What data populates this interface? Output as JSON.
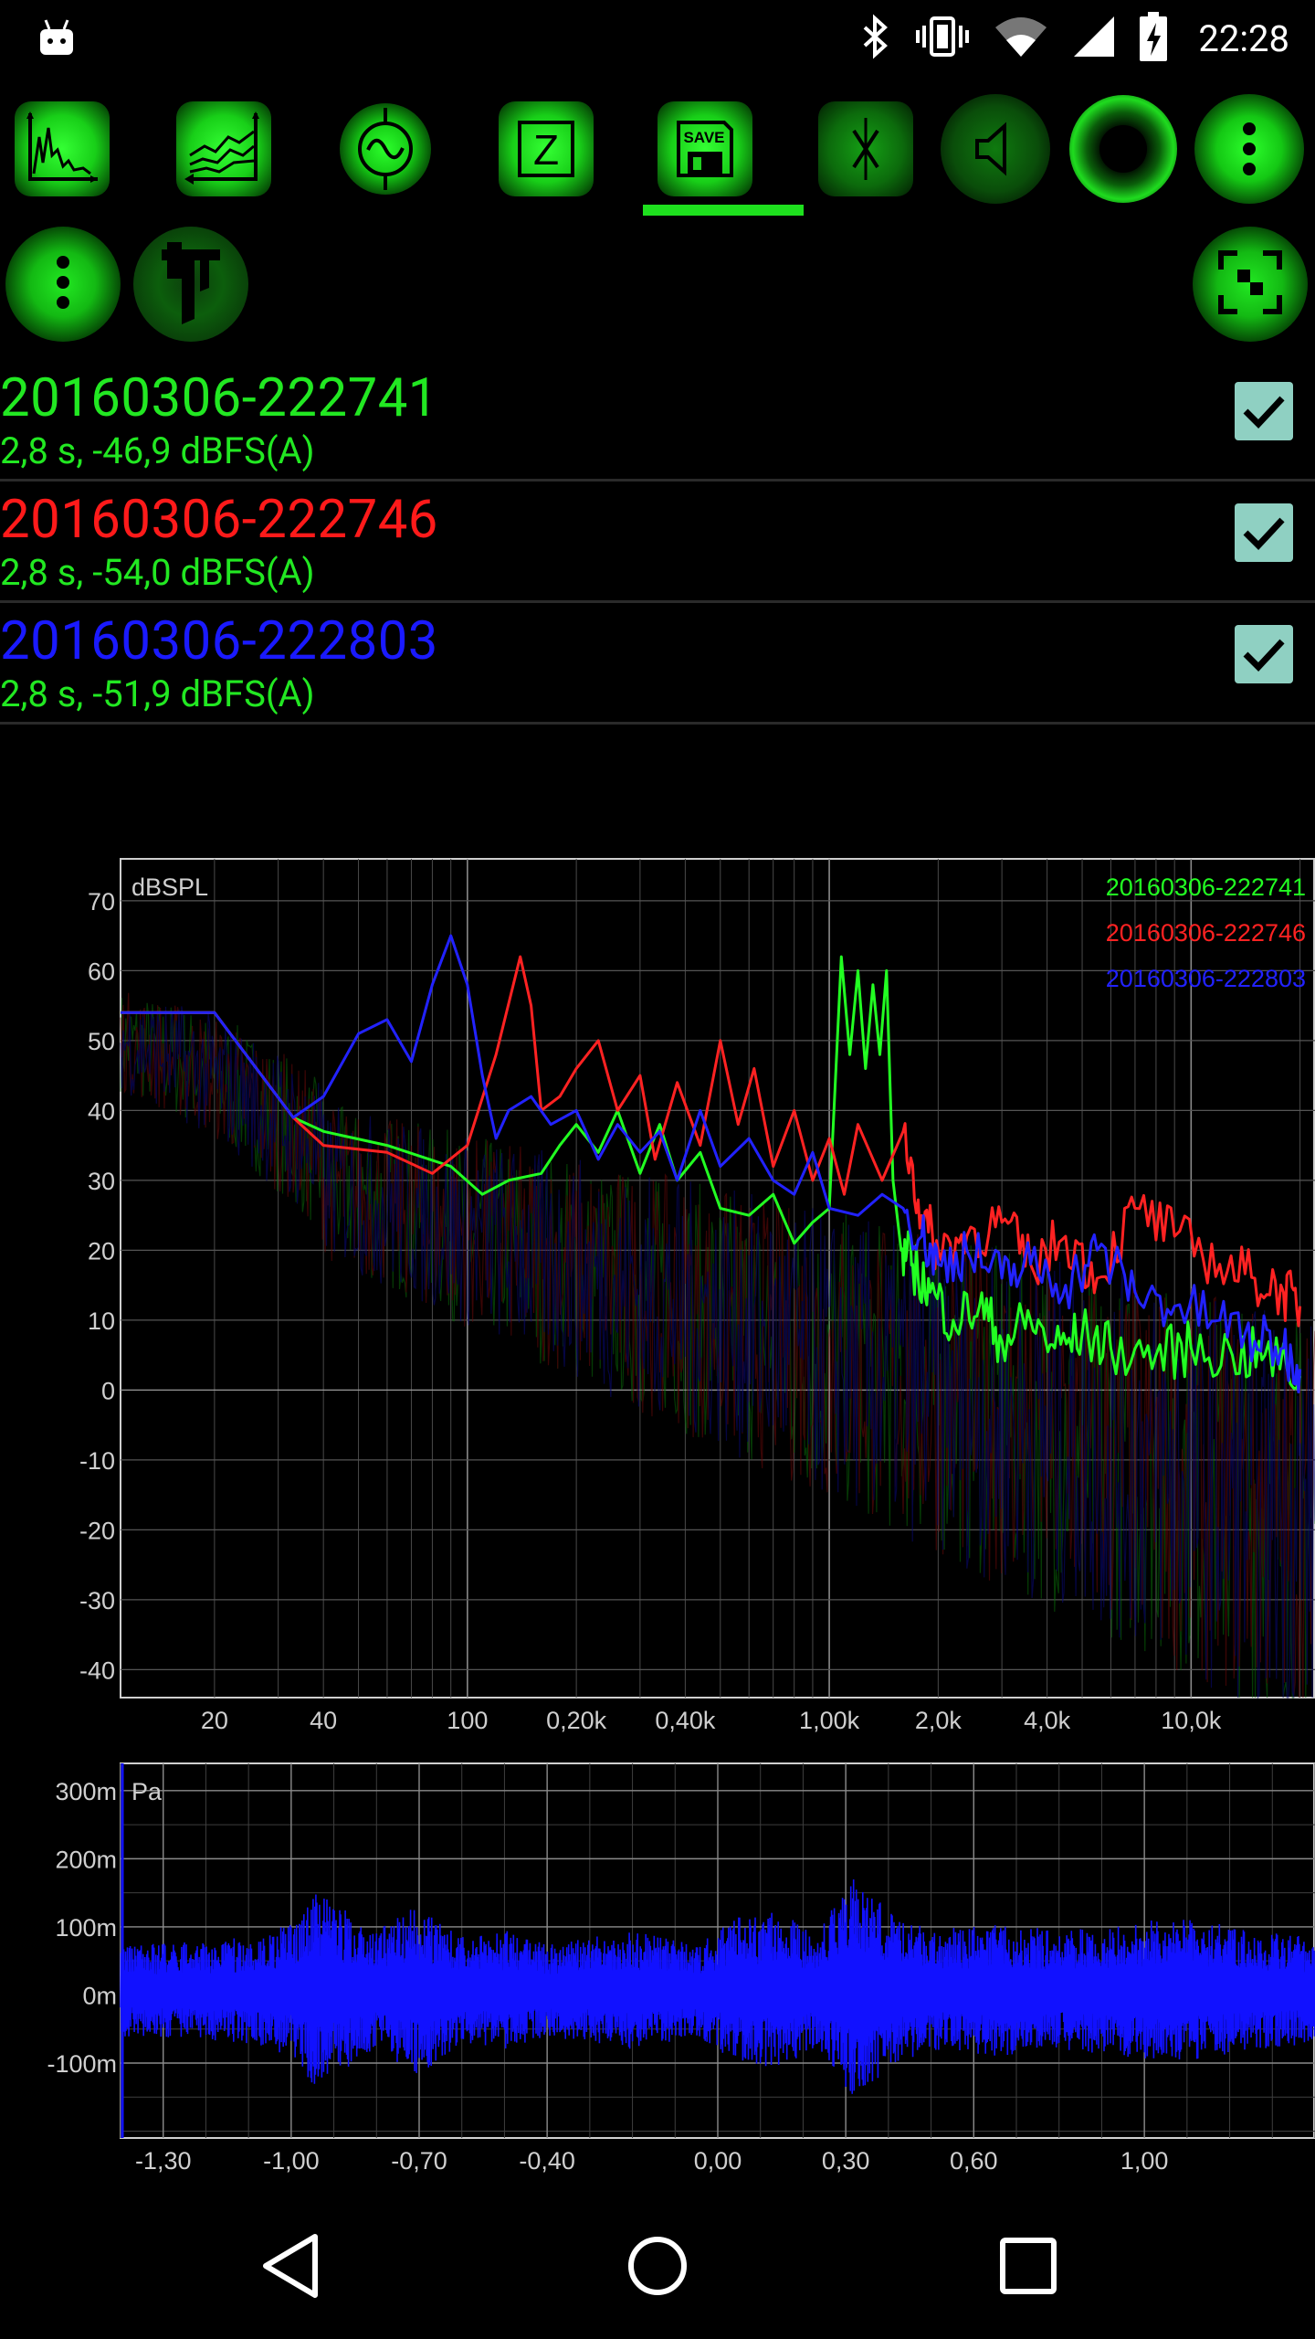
{
  "status_bar": {
    "time": "22:28",
    "icons": [
      "android-icon",
      "bluetooth-icon",
      "vibrate-icon",
      "wifi-icon",
      "signal-icon",
      "battery-charging-icon"
    ]
  },
  "toolbar": {
    "items": [
      {
        "name": "spectrum-icon",
        "state": "on"
      },
      {
        "name": "spectrogram-icon",
        "state": "on"
      },
      {
        "name": "oscilloscope-icon",
        "state": "on"
      },
      {
        "name": "impedance-icon",
        "label": "Z",
        "state": "on"
      },
      {
        "name": "save-icon",
        "label": "SAVE",
        "state": "selected"
      },
      {
        "name": "zoom-icon",
        "state": "on"
      },
      {
        "name": "speaker-icon",
        "state": "dim"
      },
      {
        "name": "record-icon",
        "state": "on"
      },
      {
        "name": "more-icon",
        "state": "on"
      }
    ],
    "selected_index": 4
  },
  "row2": {
    "items": [
      {
        "name": "more-icon"
      },
      {
        "name": "caliper-icon"
      },
      {
        "name": "fullscreen-icon"
      }
    ]
  },
  "recordings": [
    {
      "title": "20160306-222741",
      "subtitle": "2,8 s, -46,9 dBFS(A)",
      "color": "#22e822",
      "checked": true
    },
    {
      "title": "20160306-222746",
      "subtitle": "2,8 s, -54,0 dBFS(A)",
      "color": "#ff1a1a",
      "checked": true
    },
    {
      "title": "20160306-222803",
      "subtitle": "2,8 s, -51,9 dBFS(A)",
      "color": "#1a1aff",
      "checked": true
    }
  ],
  "chart_data": [
    {
      "type": "line",
      "ylabel": "dBSPL",
      "x_scale": "log",
      "xlim": [
        11,
        22000
      ],
      "ylim": [
        -44,
        76
      ],
      "x_ticks": [
        20,
        40,
        100,
        200,
        400,
        1000,
        2000,
        4000,
        10000
      ],
      "x_tick_labels": [
        "20",
        "40",
        "100",
        "0,20k",
        "0,40k",
        "1,00k",
        "2,0k",
        "4,0k",
        "10,0k"
      ],
      "y_ticks": [
        70,
        60,
        50,
        40,
        30,
        20,
        10,
        0,
        -10,
        -20,
        -30,
        -40
      ],
      "legend": "top-right",
      "series": [
        {
          "name": "20160306-222741",
          "color": "#22ff22",
          "x": [
            11,
            20,
            33,
            40,
            60,
            90,
            110,
            130,
            160,
            180,
            200,
            230,
            260,
            300,
            340,
            380,
            440,
            500,
            600,
            700,
            800,
            900,
            1000,
            1080,
            1140,
            1200,
            1260,
            1320,
            1380,
            1440,
            1500,
            1580,
            1700,
            1900,
            2200,
            2600,
            3000,
            3600,
            4200,
            5000,
            6000,
            8000,
            10000,
            13000,
            16000,
            20000
          ],
          "y": [
            54,
            54,
            39,
            37,
            35,
            32,
            28,
            30,
            31,
            35,
            38,
            34,
            40,
            31,
            38,
            30,
            34,
            26,
            25,
            28,
            21,
            24,
            26,
            62,
            48,
            60,
            46,
            58,
            48,
            60,
            30,
            20,
            18,
            14,
            10,
            12,
            7,
            10,
            6,
            8,
            6,
            5,
            6,
            5,
            5,
            2
          ]
        },
        {
          "name": "20160306-222746",
          "color": "#ff2222",
          "x": [
            11,
            20,
            33,
            40,
            60,
            80,
            100,
            120,
            140,
            150,
            160,
            180,
            200,
            230,
            260,
            300,
            330,
            380,
            440,
            500,
            560,
            620,
            700,
            800,
            900,
            1000,
            1100,
            1200,
            1400,
            1600,
            1800,
            2000,
            2400,
            3000,
            3600,
            4500,
            5500,
            7000,
            9000,
            12000,
            15000,
            18000,
            20000
          ],
          "y": [
            54,
            54,
            39,
            35,
            34,
            31,
            35,
            48,
            62,
            55,
            40,
            42,
            46,
            50,
            40,
            45,
            33,
            44,
            35,
            50,
            38,
            46,
            32,
            40,
            30,
            36,
            28,
            38,
            30,
            37,
            25,
            20,
            22,
            24,
            18,
            22,
            16,
            26,
            22,
            18,
            16,
            14,
            12
          ]
        },
        {
          "name": "20160306-222803",
          "color": "#2222ff",
          "x": [
            11,
            20,
            33,
            40,
            50,
            60,
            70,
            80,
            90,
            100,
            110,
            120,
            130,
            150,
            170,
            200,
            230,
            260,
            300,
            340,
            380,
            440,
            500,
            600,
            700,
            800,
            900,
            1000,
            1200,
            1400,
            1600,
            1800,
            2000,
            2400,
            3000,
            3600,
            4500,
            5500,
            7000,
            9000,
            12000,
            15000,
            18000,
            20000
          ],
          "y": [
            54,
            54,
            39,
            42,
            51,
            53,
            47,
            58,
            65,
            58,
            45,
            36,
            40,
            42,
            38,
            40,
            33,
            38,
            34,
            37,
            30,
            40,
            32,
            36,
            30,
            28,
            34,
            26,
            25,
            28,
            26,
            22,
            18,
            20,
            16,
            18,
            15,
            20,
            14,
            12,
            10,
            7,
            6,
            3
          ]
        }
      ]
    },
    {
      "type": "line",
      "ylabel": "Pa",
      "xlim": [
        -1.4,
        1.4
      ],
      "ylim": [
        -0.21,
        0.34
      ],
      "x_ticks": [
        -1.3,
        -1.0,
        -0.7,
        -0.4,
        0.0,
        0.3,
        0.6,
        1.0
      ],
      "x_tick_labels": [
        "-1,30",
        "-1,00",
        "-0,70",
        "-0,40",
        "0,00",
        "0,30",
        "0,60",
        "1,00"
      ],
      "y_ticks": [
        0.3,
        0.2,
        0.1,
        0.0,
        -0.1
      ],
      "y_tick_labels": [
        "300m",
        "200m",
        "100m",
        "0m",
        "-100m"
      ],
      "series": [
        {
          "name": "waveform",
          "color": "#1111ff",
          "envelope_t": [
            -1.4,
            -1.3,
            -1.1,
            -1.0,
            -0.95,
            -0.8,
            -0.7,
            -0.6,
            -0.5,
            -0.4,
            -0.2,
            -0.05,
            0.05,
            0.15,
            0.22,
            0.28,
            0.32,
            0.4,
            0.5,
            0.65,
            0.8,
            0.95,
            1.1,
            1.25,
            1.4
          ],
          "envelope_amp": [
            0.07,
            0.07,
            0.08,
            0.1,
            0.15,
            0.09,
            0.13,
            0.08,
            0.09,
            0.07,
            0.09,
            0.07,
            0.11,
            0.12,
            0.09,
            0.13,
            0.17,
            0.12,
            0.09,
            0.1,
            0.09,
            0.1,
            0.11,
            0.09,
            0.08
          ]
        }
      ]
    }
  ]
}
